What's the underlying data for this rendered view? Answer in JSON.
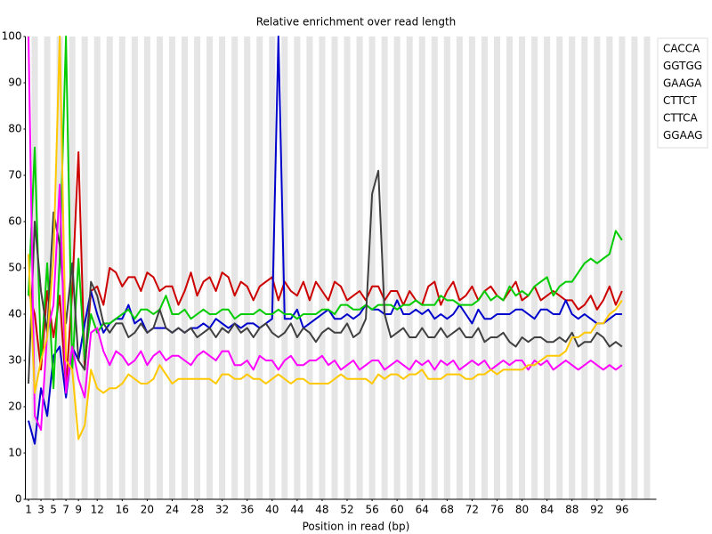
{
  "chart_data": {
    "type": "line",
    "title": "Relative enrichment over read length",
    "xlabel": "Position in read (bp)",
    "x": [
      1,
      2,
      3,
      4,
      5,
      6,
      7,
      8,
      9,
      10,
      11,
      12,
      13,
      14,
      15,
      16,
      17,
      18,
      19,
      20,
      21,
      22,
      23,
      24,
      25,
      26,
      27,
      28,
      29,
      30,
      31,
      32,
      33,
      34,
      35,
      36,
      37,
      38,
      39,
      40,
      41,
      42,
      43,
      44,
      45,
      46,
      47,
      48,
      49,
      50,
      51,
      52,
      53,
      54,
      55,
      56,
      57,
      58,
      59,
      60,
      61,
      62,
      63,
      64,
      65,
      66,
      67,
      68,
      69,
      70,
      71,
      72,
      73,
      74,
      75,
      76,
      77,
      78,
      79,
      80,
      81,
      82,
      83,
      84,
      85,
      86,
      87,
      88,
      89,
      90,
      91,
      92,
      93,
      94,
      95,
      96
    ],
    "xlim": [
      0.5,
      101.5
    ],
    "xticks": [
      1,
      3,
      5,
      7,
      9,
      12,
      16,
      20,
      24,
      28,
      32,
      36,
      40,
      44,
      48,
      52,
      56,
      60,
      64,
      68,
      72,
      76,
      80,
      84,
      88,
      92,
      96
    ],
    "ylim": [
      0,
      100
    ],
    "yticks": [
      0,
      10,
      20,
      30,
      40,
      50,
      60,
      70,
      80,
      90,
      100
    ],
    "stripes": true,
    "legend": "top-right",
    "series": [
      {
        "name": "CACCA",
        "color": "#cc0000",
        "values": [
          45,
          40,
          28,
          45,
          35,
          44,
          24,
          45,
          75,
          28,
          45,
          46,
          42,
          50,
          49,
          46,
          48,
          48,
          45,
          49,
          48,
          45,
          46,
          46,
          42,
          45,
          49,
          44,
          47,
          48,
          45,
          49,
          48,
          44,
          47,
          46,
          43,
          46,
          47,
          48,
          43,
          47,
          45,
          44,
          47,
          43,
          47,
          45,
          43,
          47,
          46,
          43,
          44,
          45,
          43,
          46,
          46,
          43,
          45,
          45,
          42,
          45,
          43,
          42,
          46,
          47,
          42,
          45,
          47,
          43,
          44,
          46,
          43,
          45,
          46,
          44,
          43,
          45,
          47,
          43,
          44,
          46,
          43,
          44,
          45,
          44,
          43,
          43,
          41,
          42,
          44,
          41,
          43,
          46,
          42,
          45
        ]
      },
      {
        "name": "GGTGG",
        "color": "#0000cc",
        "values": [
          17,
          12,
          24,
          18,
          31,
          33,
          22,
          33,
          30,
          38,
          45,
          40,
          36,
          38,
          39,
          39,
          42,
          38,
          39,
          36,
          37,
          37,
          37,
          36,
          37,
          36,
          37,
          37,
          38,
          37,
          39,
          38,
          37,
          38,
          37,
          38,
          38,
          37,
          38,
          39,
          100,
          39,
          39,
          41,
          37,
          38,
          39,
          40,
          41,
          39,
          39,
          40,
          39,
          40,
          42,
          41,
          41,
          40,
          40,
          43,
          40,
          40,
          41,
          40,
          41,
          39,
          40,
          39,
          40,
          42,
          40,
          38,
          41,
          39,
          39,
          40,
          40,
          40,
          41,
          41,
          40,
          39,
          41,
          41,
          40,
          40,
          43,
          40,
          39,
          40,
          39,
          38,
          38,
          39,
          40,
          40
        ]
      },
      {
        "name": "GAAGA",
        "color": "#00cc00",
        "values": [
          44,
          76,
          30,
          51,
          24,
          52,
          100,
          28,
          52,
          30,
          40,
          36,
          38,
          38,
          39,
          40,
          41,
          39,
          41,
          41,
          40,
          41,
          44,
          40,
          40,
          41,
          39,
          40,
          41,
          40,
          40,
          41,
          41,
          39,
          40,
          40,
          40,
          41,
          40,
          40,
          41,
          40,
          40,
          39,
          40,
          40,
          40,
          41,
          41,
          40,
          42,
          42,
          41,
          41,
          42,
          41,
          42,
          42,
          42,
          41,
          42,
          42,
          43,
          42,
          42,
          42,
          44,
          43,
          43,
          42,
          42,
          42,
          43,
          45,
          43,
          44,
          43,
          46,
          44,
          45,
          44,
          46,
          47,
          48,
          44,
          46,
          47,
          47,
          49,
          51,
          52,
          51,
          52,
          53,
          58,
          56
        ]
      },
      {
        "name": "CTTCT",
        "color": "#404040",
        "values": [
          25,
          60,
          45,
          36,
          62,
          55,
          38,
          51,
          30,
          28,
          47,
          44,
          38,
          36,
          38,
          38,
          35,
          36,
          38,
          36,
          37,
          41,
          37,
          36,
          37,
          36,
          37,
          35,
          36,
          37,
          35,
          37,
          36,
          38,
          36,
          37,
          35,
          37,
          38,
          36,
          35,
          36,
          38,
          35,
          37,
          36,
          34,
          36,
          37,
          36,
          36,
          38,
          35,
          36,
          39,
          66,
          71,
          40,
          35,
          36,
          37,
          35,
          35,
          37,
          35,
          35,
          37,
          35,
          36,
          37,
          35,
          35,
          37,
          34,
          35,
          35,
          36,
          34,
          33,
          35,
          34,
          35,
          35,
          34,
          34,
          35,
          34,
          36,
          33,
          34,
          34,
          36,
          35,
          33,
          34,
          33
        ]
      },
      {
        "name": "CTTCA",
        "color": "#ff00ff",
        "values": [
          100,
          18,
          15,
          36,
          42,
          68,
          23,
          33,
          26,
          22,
          36,
          37,
          32,
          29,
          32,
          31,
          29,
          30,
          32,
          29,
          31,
          32,
          30,
          31,
          31,
          30,
          29,
          31,
          32,
          31,
          30,
          32,
          32,
          29,
          29,
          30,
          28,
          31,
          30,
          30,
          28,
          30,
          31,
          29,
          29,
          30,
          30,
          31,
          29,
          30,
          28,
          29,
          30,
          28,
          29,
          30,
          30,
          28,
          29,
          30,
          29,
          28,
          30,
          29,
          30,
          28,
          30,
          29,
          30,
          28,
          29,
          30,
          29,
          30,
          28,
          29,
          30,
          29,
          30,
          30,
          28,
          30,
          29,
          30,
          28,
          29,
          30,
          29,
          28,
          29,
          30,
          29,
          28,
          29,
          28,
          29
        ]
      },
      {
        "name": "GGAAG",
        "color": "#ffc800",
        "values": [
          53,
          23,
          30,
          35,
          52,
          100,
          30,
          28,
          13,
          16,
          28,
          24,
          23,
          24,
          24,
          25,
          27,
          26,
          25,
          25,
          26,
          29,
          27,
          25,
          26,
          26,
          26,
          26,
          26,
          26,
          25,
          27,
          27,
          26,
          26,
          27,
          26,
          26,
          25,
          26,
          27,
          26,
          25,
          26,
          26,
          25,
          25,
          25,
          25,
          26,
          27,
          26,
          26,
          26,
          26,
          25,
          27,
          26,
          27,
          27,
          26,
          27,
          27,
          28,
          26,
          26,
          26,
          27,
          27,
          27,
          26,
          26,
          27,
          27,
          28,
          27,
          28,
          28,
          28,
          28,
          29,
          29,
          30,
          31,
          31,
          31,
          32,
          35,
          35,
          36,
          36,
          38,
          38,
          40,
          41,
          43
        ]
      }
    ]
  }
}
